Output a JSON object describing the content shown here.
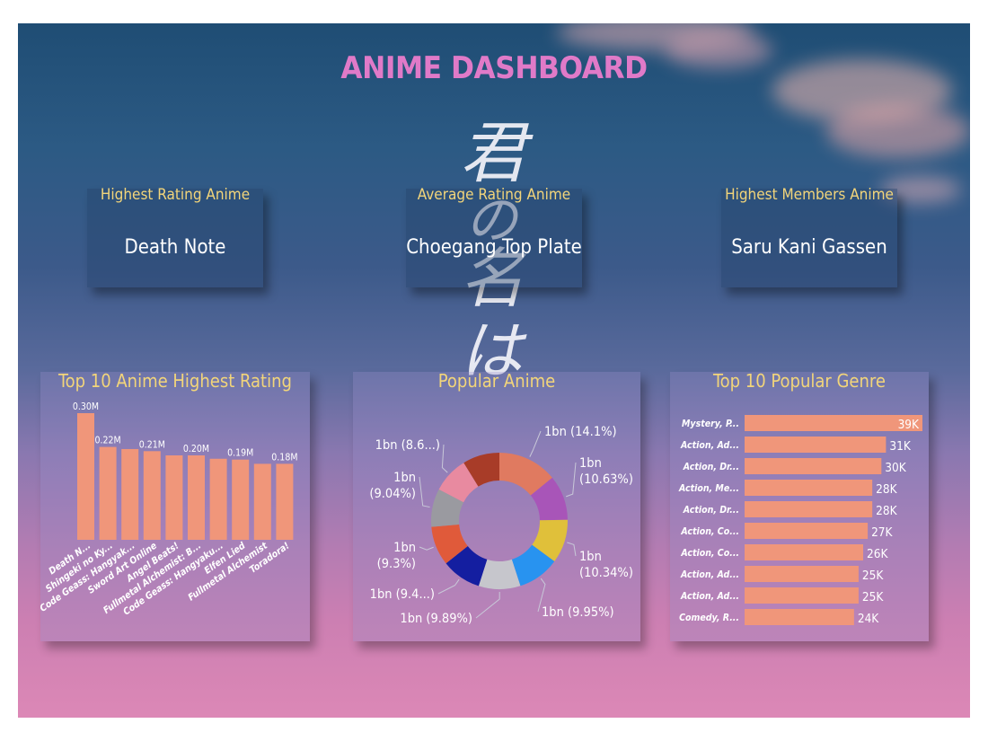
{
  "title": "ANIME DASHBOARD",
  "kpis": {
    "highest_rating": {
      "label": "Highest Rating Anime",
      "value": "Death Note"
    },
    "average_rating": {
      "label": "Average Rating Anime",
      "value": "Choegang Top Plate"
    },
    "highest_members": {
      "label": "Highest Members Anime",
      "value": "Saru Kani Gassen"
    }
  },
  "background": {
    "calligraphy": "君の名は",
    "colors": {
      "sky_top": "#1f4d74",
      "sky_bottom": "#dc88b6"
    }
  },
  "colors": {
    "bar": "#f0967a",
    "title": "#e07ac8",
    "label": "#f2d57a"
  },
  "chart_data": [
    {
      "type": "bar",
      "title": "Top 10 Anime Highest Rating",
      "categories": [
        "Death N...",
        "Shingeki no Ky...",
        "Code Geass: Hangyak...",
        "Sword Art Online",
        "Angel Beats!",
        "Fullmetal Alchemist: B...",
        "Code Geass: Hangyaku...",
        "Elfen Lied",
        "Fullmetal Alchemist",
        "Toradora!"
      ],
      "values": [
        0.3,
        0.22,
        0.215,
        0.21,
        0.2,
        0.2,
        0.192,
        0.19,
        0.18,
        0.18
      ],
      "data_labels": [
        "0.30M",
        "0.22M",
        "",
        "0.21M",
        "",
        "0.20M",
        "",
        "0.19M",
        "",
        "0.18M"
      ],
      "ylim": [
        0,
        0.3
      ]
    },
    {
      "type": "pie",
      "title": "Popular Anime",
      "slices": [
        {
          "label": "1bn (14.1%)",
          "value": 14.1,
          "color": "#e07a60"
        },
        {
          "label": "1bn (10.63%)",
          "value": 10.63,
          "color": "#a855b8"
        },
        {
          "label": "1bn (10.34%)",
          "value": 10.34,
          "color": "#e0c03a"
        },
        {
          "label": "1bn (9.95%)",
          "value": 9.95,
          "color": "#2893f0"
        },
        {
          "label": "1bn (9.89%)",
          "value": 9.89,
          "color": "#c6c6cc"
        },
        {
          "label": "1bn (9.4...)",
          "value": 9.4,
          "color": "#141ea0"
        },
        {
          "label": "1bn (9.3%)",
          "value": 9.3,
          "color": "#e05a3a"
        },
        {
          "label": "1bn (9.04%)",
          "value": 9.04,
          "color": "#9a9aa0"
        },
        {
          "label": "1bn (8.6...)",
          "value": 8.6,
          "color": "#e88aa0"
        },
        {
          "label": "",
          "value": 8.75,
          "color": "#a83c28"
        }
      ]
    },
    {
      "type": "bar",
      "title": "Top 10 Popular Genre",
      "orientation": "horizontal",
      "categories": [
        "Mystery, P...",
        "Action, Ad...",
        "Action, Dr...",
        "Action, Me...",
        "Action, Dr...",
        "Action, Co...",
        "Action, Co...",
        "Action, Ad...",
        "Action, Ad...",
        "Comedy, R..."
      ],
      "values": [
        39,
        31,
        30,
        28,
        28,
        27,
        26,
        25,
        25,
        24
      ],
      "data_labels": [
        "39K",
        "31K",
        "30K",
        "28K",
        "28K",
        "27K",
        "26K",
        "25K",
        "25K",
        "24K"
      ],
      "xlim": [
        0,
        39
      ]
    }
  ]
}
